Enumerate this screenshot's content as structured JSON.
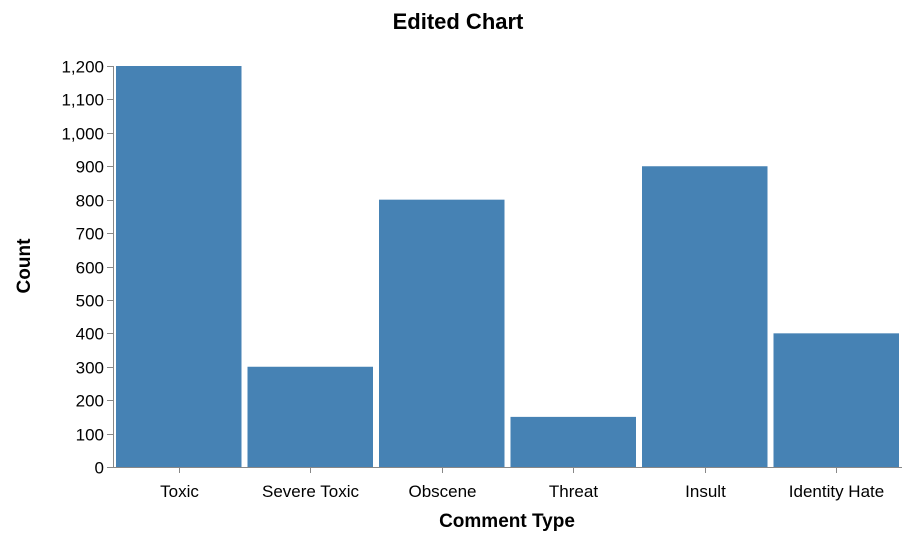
{
  "chart_data": {
    "type": "bar",
    "title": "Edited Chart",
    "xlabel": "Comment Type",
    "ylabel": "Count",
    "categories": [
      "Toxic",
      "Severe Toxic",
      "Obscene",
      "Threat",
      "Insult",
      "Identity Hate"
    ],
    "values": [
      1200,
      300,
      800,
      150,
      900,
      400
    ],
    "ylim": [
      0,
      1200
    ],
    "yticks": [
      0,
      100,
      200,
      300,
      400,
      500,
      600,
      700,
      800,
      900,
      1000,
      1100,
      1200
    ],
    "ytick_labels": [
      "0",
      "100",
      "200",
      "300",
      "400",
      "500",
      "600",
      "700",
      "800",
      "900",
      "1,000",
      "1,100",
      "1,200"
    ],
    "grid": false,
    "bar_color": "#4682b4",
    "axis_color": "#888888"
  }
}
